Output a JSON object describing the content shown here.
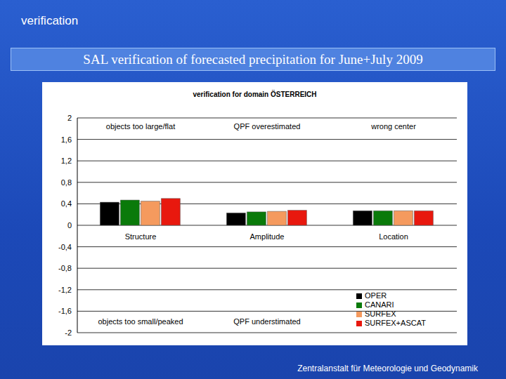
{
  "header": "verification",
  "slide_title": "SAL verification of forecasted precipitation for June+July 2009",
  "footer": "Zentralanstalt für Meteorologie und Geodynamik",
  "chart_data": {
    "type": "bar",
    "title": "verification for domain ÖSTERREICH",
    "categories": [
      "Structure",
      "Amplitude",
      "Location"
    ],
    "series": [
      {
        "name": "OPER",
        "color": "#000000",
        "values": [
          0.43,
          0.23,
          0.27
        ]
      },
      {
        "name": "CANARI",
        "color": "#0a7a0a",
        "values": [
          0.47,
          0.25,
          0.27
        ]
      },
      {
        "name": "SURFEX",
        "color": "#f59a5e",
        "values": [
          0.45,
          0.26,
          0.27
        ]
      },
      {
        "name": "SURFEX+ASCAT",
        "color": "#e8180e",
        "values": [
          0.5,
          0.28,
          0.27
        ]
      }
    ],
    "ylim": [
      -2,
      2
    ],
    "yticks": [
      {
        "value": -2,
        "label": "-2"
      },
      {
        "value": -1.6,
        "label": "-1,6"
      },
      {
        "value": -1.2,
        "label": "-1,2"
      },
      {
        "value": -0.8,
        "label": "-0,8"
      },
      {
        "value": -0.4,
        "label": "-0,4"
      },
      0,
      {
        "value": 0.4,
        "label": "0,4"
      },
      {
        "value": 0.8,
        "label": "0,8"
      },
      {
        "value": 1.2,
        "label": "1,2"
      },
      {
        "value": 1.6,
        "label": "1,6"
      },
      2
    ],
    "grid": true,
    "legend": "lower right",
    "annotations": [
      "objects too large/flat",
      "QPF overestimated",
      "wrong center",
      "objects too small/peaked",
      "QPF understimated"
    ]
  }
}
